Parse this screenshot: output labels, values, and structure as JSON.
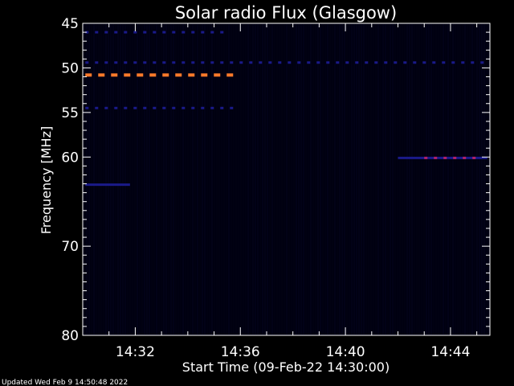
{
  "chart_data": {
    "type": "heatmap",
    "title": "Solar radio Flux (Glasgow)",
    "xlabel": "Start Time (09-Feb-22 14:30:00)",
    "ylabel": "Frequency [MHz]",
    "xlim": [
      0,
      15.5
    ],
    "ylim": [
      45,
      80
    ],
    "y_scale": "linear (increasing downward)",
    "x_ticks": [
      {
        "value": 2,
        "label": "14:32"
      },
      {
        "value": 6,
        "label": "14:36"
      },
      {
        "value": 10,
        "label": "14:40"
      },
      {
        "value": 14,
        "label": "14:44"
      }
    ],
    "y_ticks": [
      {
        "value": 45,
        "label": "45"
      },
      {
        "value": 50,
        "label": "50"
      },
      {
        "value": 55,
        "label": "55"
      },
      {
        "value": 60,
        "label": "60"
      },
      {
        "value": 70,
        "label": "70"
      },
      {
        "value": 80,
        "label": "80"
      }
    ],
    "background_color": "#000010",
    "colors": {
      "low": "#1a1a8a",
      "mid": "#b0206a",
      "high": "#ff7a2a"
    },
    "features": [
      {
        "freq": 50.8,
        "t_start": 0.1,
        "t_end": 5.9,
        "intensity": "high",
        "dashed": true
      },
      {
        "freq": 49.4,
        "t_start": 0.1,
        "t_end": 15.4,
        "intensity": "low",
        "dashed": true
      },
      {
        "freq": 54.5,
        "t_start": 0.1,
        "t_end": 5.9,
        "intensity": "low",
        "dashed": true
      },
      {
        "freq": 46.0,
        "t_start": 0.1,
        "t_end": 5.5,
        "intensity": "low",
        "dashed": true
      },
      {
        "freq": 60.1,
        "t_start": 12.0,
        "t_end": 15.4,
        "intensity": "low",
        "dashed": false
      },
      {
        "freq": 60.1,
        "t_start": 13.0,
        "t_end": 15.0,
        "intensity": "mid",
        "dashed": true
      },
      {
        "freq": 63.1,
        "t_start": 0.1,
        "t_end": 1.8,
        "intensity": "low",
        "dashed": false
      }
    ]
  },
  "footer": {
    "updated": "Updated Wed Feb  9 14:50:48 2022"
  }
}
